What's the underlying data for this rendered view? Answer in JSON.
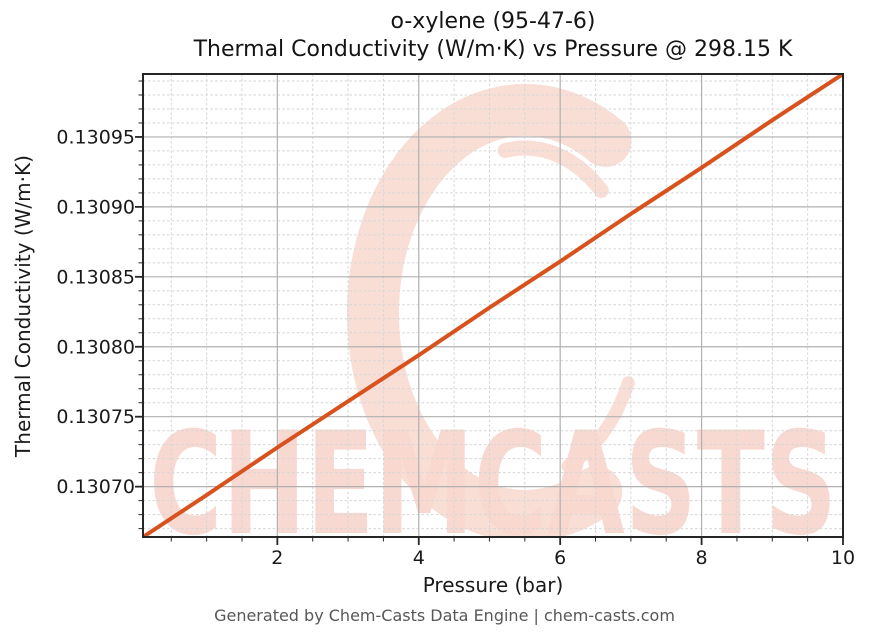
{
  "chart_data": {
    "type": "line",
    "title": {
      "line1": "o-xylene (95-47-6)",
      "line2": "Thermal Conductivity (W/m·K) vs Pressure @ 298.15 K"
    },
    "substance": "o-xylene",
    "cas_number": "95-47-6",
    "temperature": "298.15 K",
    "xlabel": "Pressure (bar)",
    "ylabel": "Thermal Conductivity (W/m·K)",
    "xlim": [
      0.1,
      10
    ],
    "ylim": [
      0.130664,
      0.130995
    ],
    "grid": {
      "major": true,
      "minor": true
    },
    "legend": "none",
    "x_ticks": {
      "major": [
        2,
        4,
        6,
        8,
        10
      ],
      "labels": [
        "2",
        "4",
        "6",
        "8",
        "10"
      ],
      "minor_step": 0.5
    },
    "y_ticks": {
      "major": [
        0.1307,
        0.13075,
        0.1308,
        0.13085,
        0.1309,
        0.13095
      ],
      "labels": [
        "0.13070",
        "0.13075",
        "0.13080",
        "0.13085",
        "0.13090",
        "0.13095"
      ],
      "minor_step": 1e-05
    },
    "series": [
      {
        "name": "Thermal Conductivity (W/m·K)",
        "color": "#d8521e",
        "line_width": 4,
        "x": [
          0.1,
          1,
          2,
          3,
          4,
          5,
          6,
          7,
          8,
          9,
          10
        ],
        "y": [
          0.130664,
          0.130694,
          0.130728,
          0.130761,
          0.130794,
          0.130828,
          0.130861,
          0.130895,
          0.130928,
          0.130962,
          0.130995
        ]
      }
    ]
  },
  "watermark": {
    "text": "CHEMCASTS",
    "color": "#f8d8cf"
  },
  "footer": {
    "text": "Generated by Chem-Casts Data Engine | chem-casts.com"
  },
  "colors": {
    "line": "#d8521e",
    "watermark": "#f8d8cf",
    "grid_major": "#b0b0b0",
    "grid_minor": "#d6d6d6",
    "spine": "#262626",
    "text": "#1a1a1a",
    "footer_text": "#575757",
    "background": "#ffffff"
  }
}
